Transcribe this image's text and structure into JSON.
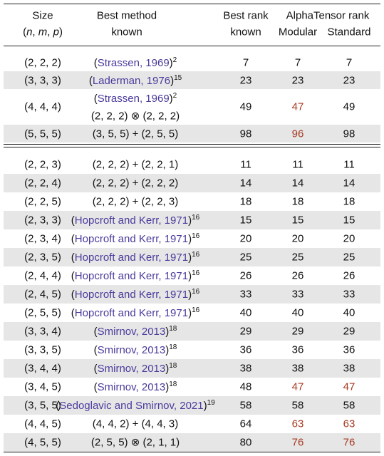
{
  "header": {
    "size": [
      "Size",
      "(n, m, p)"
    ],
    "method": [
      "Best method",
      "known"
    ],
    "best": [
      "Best rank",
      "known"
    ],
    "alpha": "AlphaTensor rank",
    "modular": "Modular",
    "standard": "Standard"
  },
  "colors": {
    "cite": "#4b3a9c",
    "improved": "#a63a22",
    "shade": "#e6e6e6"
  },
  "groups": [
    [
      {
        "size": "(2, 2, 2)",
        "method": [
          [
            {
              "text": "("
            },
            {
              "text": "Strassen, 1969",
              "style": "cite"
            },
            {
              "text": ")"
            },
            {
              "text": "2",
              "style": "sup"
            }
          ]
        ],
        "best": "7",
        "modular": "7",
        "standard": "7",
        "shaded": false,
        "improved": []
      },
      {
        "size": "(3, 3, 3)",
        "method": [
          [
            {
              "text": "("
            },
            {
              "text": "Laderman, 1976",
              "style": "cite"
            },
            {
              "text": ")"
            },
            {
              "text": "15",
              "style": "sup"
            }
          ]
        ],
        "best": "23",
        "modular": "23",
        "standard": "23",
        "shaded": true,
        "improved": []
      },
      {
        "size": "(4, 4, 4)",
        "method": [
          [
            {
              "text": "("
            },
            {
              "text": "Strassen, 1969",
              "style": "cite"
            },
            {
              "text": ")"
            },
            {
              "text": "2",
              "style": "sup"
            }
          ],
          [
            {
              "text": "(2, 2, 2) ⊗ (2, 2, 2)"
            }
          ]
        ],
        "best": "49",
        "modular": "47",
        "standard": "49",
        "shaded": false,
        "improved": [
          "modular"
        ]
      },
      {
        "size": "(5, 5, 5)",
        "method": [
          [
            {
              "text": "(3, 5, 5) + (2, 5, 5)"
            }
          ]
        ],
        "best": "98",
        "modular": "96",
        "standard": "98",
        "shaded": true,
        "improved": [
          "modular"
        ]
      }
    ],
    [
      {
        "size": "(2, 2, 3)",
        "method": [
          [
            {
              "text": "(2, 2, 2) + (2, 2, 1)"
            }
          ]
        ],
        "best": "11",
        "modular": "11",
        "standard": "11",
        "shaded": false,
        "improved": []
      },
      {
        "size": "(2, 2, 4)",
        "method": [
          [
            {
              "text": "(2, 2, 2) + (2, 2, 2)"
            }
          ]
        ],
        "best": "14",
        "modular": "14",
        "standard": "14",
        "shaded": true,
        "improved": []
      },
      {
        "size": "(2, 2, 5)",
        "method": [
          [
            {
              "text": "(2, 2, 2) + (2, 2, 3)"
            }
          ]
        ],
        "best": "18",
        "modular": "18",
        "standard": "18",
        "shaded": false,
        "improved": []
      },
      {
        "size": "(2, 3, 3)",
        "method": [
          [
            {
              "text": "("
            },
            {
              "text": "Hopcroft and Kerr, 1971",
              "style": "cite"
            },
            {
              "text": ")"
            },
            {
              "text": "16",
              "style": "sup"
            }
          ]
        ],
        "best": "15",
        "modular": "15",
        "standard": "15",
        "shaded": true,
        "improved": []
      },
      {
        "size": "(2, 3, 4)",
        "method": [
          [
            {
              "text": "("
            },
            {
              "text": "Hopcroft and Kerr, 1971",
              "style": "cite"
            },
            {
              "text": ")"
            },
            {
              "text": "16",
              "style": "sup"
            }
          ]
        ],
        "best": "20",
        "modular": "20",
        "standard": "20",
        "shaded": false,
        "improved": []
      },
      {
        "size": "(2, 3, 5)",
        "method": [
          [
            {
              "text": "("
            },
            {
              "text": "Hopcroft and Kerr, 1971",
              "style": "cite"
            },
            {
              "text": ")"
            },
            {
              "text": "16",
              "style": "sup"
            }
          ]
        ],
        "best": "25",
        "modular": "25",
        "standard": "25",
        "shaded": true,
        "improved": []
      },
      {
        "size": "(2, 4, 4)",
        "method": [
          [
            {
              "text": "("
            },
            {
              "text": "Hopcroft and Kerr, 1971",
              "style": "cite"
            },
            {
              "text": ")"
            },
            {
              "text": "16",
              "style": "sup"
            }
          ]
        ],
        "best": "26",
        "modular": "26",
        "standard": "26",
        "shaded": false,
        "improved": []
      },
      {
        "size": "(2, 4, 5)",
        "method": [
          [
            {
              "text": "("
            },
            {
              "text": "Hopcroft and Kerr, 1971",
              "style": "cite"
            },
            {
              "text": ")"
            },
            {
              "text": "16",
              "style": "sup"
            }
          ]
        ],
        "best": "33",
        "modular": "33",
        "standard": "33",
        "shaded": true,
        "improved": []
      },
      {
        "size": "(2, 5, 5)",
        "method": [
          [
            {
              "text": "("
            },
            {
              "text": "Hopcroft and Kerr, 1971",
              "style": "cite"
            },
            {
              "text": ")"
            },
            {
              "text": "16",
              "style": "sup"
            }
          ]
        ],
        "best": "40",
        "modular": "40",
        "standard": "40",
        "shaded": false,
        "improved": []
      },
      {
        "size": "(3, 3, 4)",
        "method": [
          [
            {
              "text": "("
            },
            {
              "text": "Smirnov, 2013",
              "style": "cite"
            },
            {
              "text": ")"
            },
            {
              "text": "18",
              "style": "sup"
            }
          ]
        ],
        "best": "29",
        "modular": "29",
        "standard": "29",
        "shaded": true,
        "improved": []
      },
      {
        "size": "(3, 3, 5)",
        "method": [
          [
            {
              "text": "("
            },
            {
              "text": "Smirnov, 2013",
              "style": "cite"
            },
            {
              "text": ")"
            },
            {
              "text": "18",
              "style": "sup"
            }
          ]
        ],
        "best": "36",
        "modular": "36",
        "standard": "36",
        "shaded": false,
        "improved": []
      },
      {
        "size": "(3, 4, 4)",
        "method": [
          [
            {
              "text": "("
            },
            {
              "text": "Smirnov, 2013",
              "style": "cite"
            },
            {
              "text": ")"
            },
            {
              "text": "18",
              "style": "sup"
            }
          ]
        ],
        "best": "38",
        "modular": "38",
        "standard": "38",
        "shaded": true,
        "improved": []
      },
      {
        "size": "(3, 4, 5)",
        "method": [
          [
            {
              "text": "("
            },
            {
              "text": "Smirnov, 2013",
              "style": "cite"
            },
            {
              "text": ")"
            },
            {
              "text": "18",
              "style": "sup"
            }
          ]
        ],
        "best": "48",
        "modular": "47",
        "standard": "47",
        "shaded": false,
        "improved": [
          "modular",
          "standard"
        ]
      },
      {
        "size": "(3, 5, 5)",
        "method": [
          [
            {
              "text": "("
            },
            {
              "text": "Sedoglavic and Smirnov, 2021",
              "style": "cite"
            },
            {
              "text": ")"
            },
            {
              "text": "19",
              "style": "sup"
            }
          ]
        ],
        "best": "58",
        "modular": "58",
        "standard": "58",
        "shaded": true,
        "improved": []
      },
      {
        "size": "(4, 4, 5)",
        "method": [
          [
            {
              "text": "(4, 4, 2) + (4, 4, 3)"
            }
          ]
        ],
        "best": "64",
        "modular": "63",
        "standard": "63",
        "shaded": false,
        "improved": [
          "modular",
          "standard"
        ]
      },
      {
        "size": "(4, 5, 5)",
        "method": [
          [
            {
              "text": "(2, 5, 5) ⊗ (2, 1, 1)"
            }
          ]
        ],
        "best": "80",
        "modular": "76",
        "standard": "76",
        "shaded": true,
        "improved": [
          "modular",
          "standard"
        ]
      }
    ]
  ]
}
